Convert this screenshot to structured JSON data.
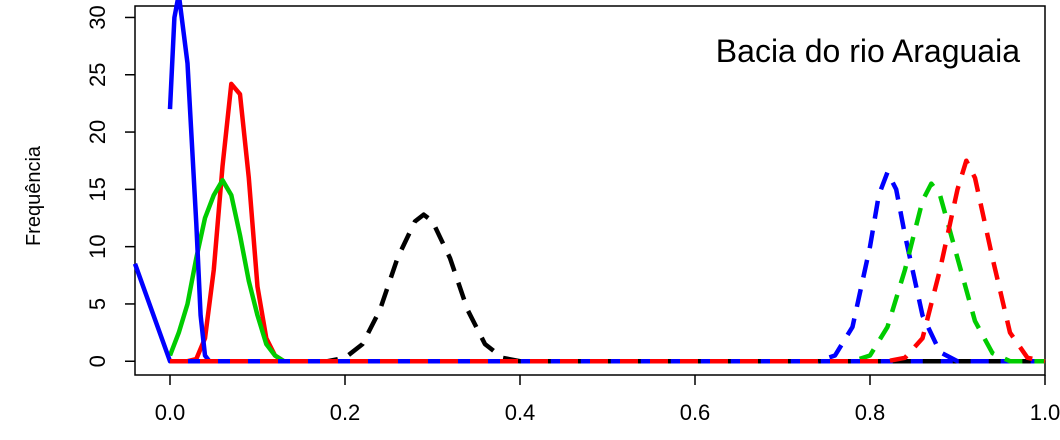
{
  "chart_data": {
    "type": "line",
    "title": "",
    "xlabel": "",
    "ylabel": "Frequência",
    "annotation": "Bacia do rio Araguaia",
    "xlim": [
      -0.04,
      1.0
    ],
    "ylim": [
      -1.2,
      31.0
    ],
    "x_ticks": [
      "0.0",
      "0.2",
      "0.4",
      "0.6",
      "0.8",
      "1.0"
    ],
    "x_tick_values": [
      0.0,
      0.2,
      0.4,
      0.6,
      0.8,
      1.0
    ],
    "y_ticks": [
      "0",
      "5",
      "10",
      "15",
      "20",
      "25",
      "30"
    ],
    "y_tick_values": [
      0,
      5,
      10,
      15,
      20,
      25,
      30
    ],
    "grid": false,
    "series": [
      {
        "color": "#ff0000",
        "dash": "solid",
        "x": [
          0.0,
          0.02,
          0.03,
          0.04,
          0.05,
          0.06,
          0.07,
          0.08,
          0.09,
          0.1,
          0.11,
          0.12,
          0.13,
          0.15,
          0.2,
          1.0
        ],
        "y": [
          0,
          0,
          0.2,
          2,
          8,
          17,
          24.2,
          23.3,
          16,
          6.5,
          2,
          0.5,
          0,
          0,
          0,
          0
        ]
      },
      {
        "color": "#00cc00",
        "dash": "solid",
        "x": [
          0.0,
          0.01,
          0.02,
          0.03,
          0.04,
          0.05,
          0.06,
          0.07,
          0.08,
          0.09,
          0.1,
          0.11,
          0.12,
          0.13,
          0.15,
          0.2,
          1.0
        ],
        "y": [
          0.5,
          2.5,
          5,
          9,
          12.5,
          14.5,
          15.8,
          14.5,
          11,
          7,
          4,
          1.5,
          0.5,
          0,
          0,
          0,
          0
        ]
      },
      {
        "color": "#0000ff",
        "dash": "solid",
        "x": [
          -0.04,
          0.0,
          0.01,
          0.02,
          0.03,
          0.04,
          0.05,
          0.1,
          0.5,
          1.0
        ],
        "y": [
          8.5,
          0,
          0,
          0,
          0,
          0,
          0,
          0,
          0,
          0
        ],
        "x2": [
          0.0,
          0.005,
          0.01,
          0.02,
          0.03,
          0.035,
          0.04,
          0.045,
          0.05
        ],
        "y2": [
          22,
          30,
          32,
          26,
          12,
          4,
          0.5,
          0,
          0
        ]
      },
      {
        "color": "#000000",
        "dash": "dashed",
        "x": [
          0.18,
          0.2,
          0.22,
          0.24,
          0.26,
          0.28,
          0.29,
          0.3,
          0.32,
          0.34,
          0.36,
          0.38,
          0.4,
          1.0
        ],
        "y": [
          0,
          0.3,
          1.5,
          4.5,
          9,
          12.2,
          12.8,
          12.2,
          9,
          4.5,
          1.5,
          0.3,
          0,
          0
        ],
        "xstart": 0.0
      },
      {
        "color": "#0000ff",
        "dash": "dashed",
        "x": [
          0.0,
          0.74,
          0.76,
          0.78,
          0.8,
          0.81,
          0.82,
          0.83,
          0.84,
          0.86,
          0.88,
          0.9,
          0.92,
          1.0
        ],
        "y": [
          0,
          0,
          0.5,
          3,
          10,
          14.5,
          16.5,
          15,
          11,
          4,
          0.8,
          0,
          0,
          0
        ]
      },
      {
        "color": "#00cc00",
        "dash": "dashed",
        "x": [
          0.0,
          0.76,
          0.78,
          0.8,
          0.82,
          0.84,
          0.86,
          0.87,
          0.88,
          0.9,
          0.92,
          0.94,
          0.96,
          1.0
        ],
        "y": [
          0,
          0,
          0,
          0.5,
          3,
          8,
          14,
          15.5,
          14.5,
          9,
          3.5,
          0.7,
          0,
          0
        ]
      },
      {
        "color": "#ff0000",
        "dash": "dashed",
        "x": [
          0.0,
          0.8,
          0.82,
          0.84,
          0.86,
          0.88,
          0.9,
          0.91,
          0.92,
          0.94,
          0.96,
          0.98,
          1.0
        ],
        "y": [
          0,
          0,
          0,
          0.3,
          2,
          8,
          15,
          17.5,
          16,
          9,
          2.5,
          0.3,
          0
        ]
      }
    ]
  }
}
